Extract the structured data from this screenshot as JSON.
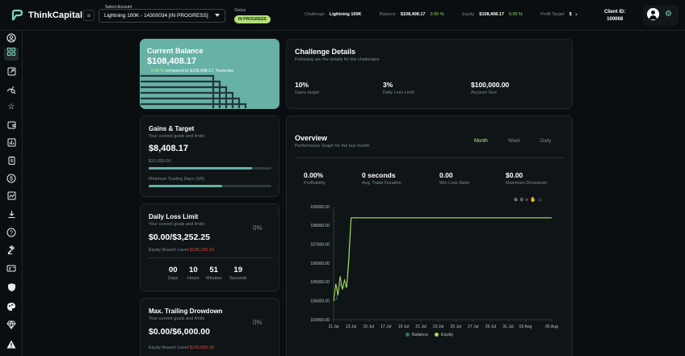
{
  "app": {
    "name": "ThinkCapital"
  },
  "header": {
    "select_label": "Select Account",
    "selected_account": "Lightning 100K - 14300034 [IN PROGRESS]",
    "status_label": "Status",
    "status_value": "IN PROGRESS",
    "challenge_label": "Challenge",
    "challenge_value": "Lightning 100K",
    "balance_label": "Balance",
    "balance_value": "$108,408.17",
    "balance_pct": "0.00 %",
    "equity_label": "Equity",
    "equity_value": "$108,408.17",
    "equity_pct": "0.00 %",
    "profit_label": "Profit Target",
    "profit_value": "$",
    "client_label": "Client ID:",
    "client_value": "100068",
    "accent": "#67b1a5"
  },
  "sidebar": {
    "icons": [
      "user-icon",
      "dashboard-icon",
      "external-link-icon",
      "analytics-icon",
      "star-icon",
      "wallet-icon",
      "report-icon",
      "clipboard-icon",
      "dollar-icon",
      "chart-icon",
      "download-icon",
      "help-icon",
      "gavel-icon",
      "id-card-icon",
      "shield-icon",
      "palette-icon",
      "diamond-icon",
      "warning-icon"
    ]
  },
  "current_balance": {
    "title": "Current Balance",
    "value": "$108,408.17",
    "pct": "0.00 %",
    "compare": "compared to $108,408.17, Yesterday"
  },
  "challenge_details": {
    "title": "Challenge Details",
    "subtitle": "Following are the details for the challenges",
    "items": [
      {
        "value": "10%",
        "label": "Gains target"
      },
      {
        "value": "3%",
        "label": "Daily Loss Limit"
      },
      {
        "value": "$100,000.00",
        "label": "Account Size"
      }
    ]
  },
  "gains": {
    "title": "Gains & Target",
    "subtitle": "Your current goals and limits",
    "value": "$8,408.17",
    "target": "$10,000.00",
    "target_progress": 0.84,
    "days_label": "Minimum Trading Days (3/5)",
    "days_progress": 0.6
  },
  "daily_loss": {
    "title": "Daily Loss Limit",
    "subtitle": "Your current goals and limits",
    "pct": "0%",
    "value": "$0.00/$3,252.25",
    "breach_label": "Equity Breach Level",
    "breach_value": "$105,155.92",
    "countdown": [
      {
        "n": "00",
        "u": "Days"
      },
      {
        "n": "10",
        "u": "Hours"
      },
      {
        "n": "51",
        "u": "Minutes"
      },
      {
        "n": "19",
        "u": "Seconds"
      }
    ]
  },
  "trailing": {
    "title": "Max. Trailing Drowdown",
    "subtitle": "Your current goals and limits",
    "pct": "0%",
    "value": "$0.00/$6,000.00",
    "breach_label": "Equity Breach Level",
    "breach_value": "$100,000.00"
  },
  "overview": {
    "title": "Overview",
    "subtitle": "Performance Graph for the last month",
    "tabs": [
      "Month",
      "Week",
      "Daily"
    ],
    "active_tab": "Month",
    "metrics": [
      {
        "value": "0.00%",
        "label": "Profitability"
      },
      {
        "value": "0 seconds",
        "label": "Avg. Trade Duration"
      },
      {
        "value": "0.00",
        "label": "Win-Loss Ratio"
      },
      {
        "value": "$0.00",
        "label": "Maximum Drowdown"
      }
    ]
  },
  "chart_data": {
    "type": "line",
    "title": "",
    "xlabel": "",
    "ylabel": "",
    "x_ticks": [
      "11 Jul",
      "13 Jul",
      "15 Jul",
      "17 Jul",
      "19 Jul",
      "21 Jul",
      "23 Jul",
      "25 Jul",
      "27 Jul",
      "29 Jul",
      "31 Jul",
      "02 Aug",
      "05 Aug"
    ],
    "y_ticks": [
      "103000.00",
      "104000.00",
      "105000.00",
      "106000.00",
      "107000.00",
      "108000.00",
      "109000.00"
    ],
    "ylim": [
      103000,
      109000
    ],
    "grid": false,
    "legend": "bottom",
    "series": [
      {
        "name": "Balance",
        "color": "#3a6f6a",
        "x": [
          "11 Jul",
          "11 Jul",
          "11 Jul",
          "12 Jul",
          "12 Jul",
          "13 Jul",
          "05 Aug"
        ],
        "values": [
          104000,
          104100,
          104900,
          104700,
          104800,
          108408,
          108408
        ]
      },
      {
        "name": "Equity",
        "color": "#a6dc5a",
        "x": [
          "11 Jul",
          "11 Jul",
          "11 Jul",
          "11 Jul",
          "12 Jul",
          "12 Jul",
          "12 Jul",
          "12 Jul",
          "13 Jul",
          "05 Aug"
        ],
        "values": [
          104000,
          104900,
          104300,
          105300,
          104600,
          105100,
          104700,
          106200,
          108408,
          108408
        ]
      }
    ]
  }
}
